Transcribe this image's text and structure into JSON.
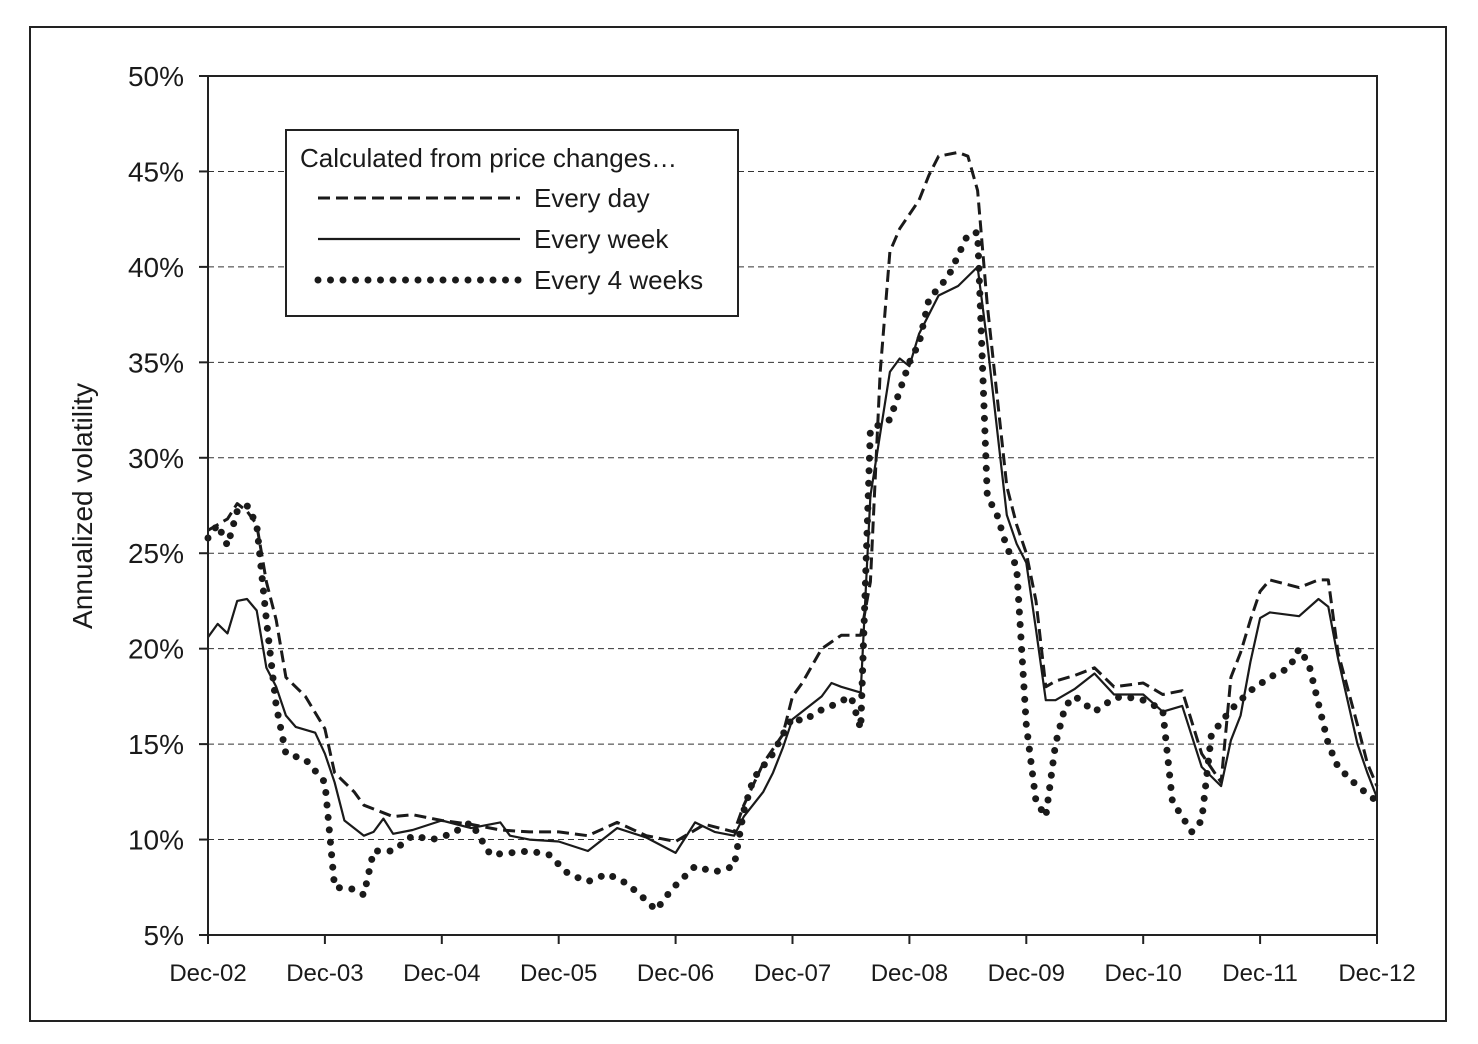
{
  "chart_data": {
    "type": "line",
    "title": "",
    "ylabel": "Annualized volatility",
    "xlabel": "",
    "ylim": [
      5,
      50
    ],
    "y_unit": "%",
    "y_ticks": [
      "5%",
      "10%",
      "15%",
      "20%",
      "25%",
      "30%",
      "35%",
      "40%",
      "45%",
      "50%"
    ],
    "x_ticks": [
      "Dec-02",
      "Dec-03",
      "Dec-04",
      "Dec-05",
      "Dec-06",
      "Dec-07",
      "Dec-08",
      "Dec-09",
      "Dec-10",
      "Dec-11",
      "Dec-12"
    ],
    "x_range": [
      "Dec-02",
      "Dec-12"
    ],
    "grid": "horizontal dashed",
    "legend": {
      "title": "Calculated from price changes…",
      "position": "top-left",
      "entries": [
        "Every day",
        "Every week",
        "Every 4 weeks"
      ]
    },
    "series": [
      {
        "name": "Every day",
        "style": "dashed",
        "points": [
          [
            "Dec-02",
            26.2
          ],
          [
            "Feb-03",
            26.8
          ],
          [
            "Mar-03",
            27.6
          ],
          [
            "Apr-03",
            27.2
          ],
          [
            "May-03",
            26.5
          ],
          [
            "Jun-03",
            23.5
          ],
          [
            "Jul-03",
            21.5
          ],
          [
            "Aug-03",
            18.5
          ],
          [
            "Oct-03",
            17.5
          ],
          [
            "Dec-03",
            15.8
          ],
          [
            "Jan-04",
            13.5
          ],
          [
            "Mar-04",
            12.5
          ],
          [
            "Apr-04",
            11.8
          ],
          [
            "Jun-04",
            11.4
          ],
          [
            "Jul-04",
            11.2
          ],
          [
            "Sep-04",
            11.3
          ],
          [
            "Dec-04",
            11.0
          ],
          [
            "Mar-05",
            10.8
          ],
          [
            "Jun-05",
            10.5
          ],
          [
            "Sep-05",
            10.4
          ],
          [
            "Dec-05",
            10.4
          ],
          [
            "Mar-06",
            10.2
          ],
          [
            "Jun-06",
            10.9
          ],
          [
            "Sep-06",
            10.2
          ],
          [
            "Dec-06",
            9.9
          ],
          [
            "Mar-07",
            10.8
          ],
          [
            "Jun-07",
            10.4
          ],
          [
            "Jul-07",
            11.8
          ],
          [
            "Sep-07",
            14.0
          ],
          [
            "Nov-07",
            15.5
          ],
          [
            "Dec-07",
            17.5
          ],
          [
            "Jan-08",
            18.2
          ],
          [
            "Mar-08",
            20.0
          ],
          [
            "May-08",
            20.7
          ],
          [
            "Jul-08",
            20.7
          ],
          [
            "Aug-08",
            23.5
          ],
          [
            "Sep-08",
            34.5
          ],
          [
            "Oct-08",
            40.8
          ],
          [
            "Nov-08",
            42.0
          ],
          [
            "Jan-09",
            43.5
          ],
          [
            "Feb-09",
            44.8
          ],
          [
            "Mar-09",
            45.8
          ],
          [
            "May-09",
            46.0
          ],
          [
            "Jun-09",
            45.8
          ],
          [
            "Jul-09",
            44.0
          ],
          [
            "Aug-09",
            38.0
          ],
          [
            "Oct-09",
            28.5
          ],
          [
            "Nov-09",
            26.5
          ],
          [
            "Dec-09",
            25.0
          ],
          [
            "Jan-10",
            22.5
          ],
          [
            "Feb-10",
            18.0
          ],
          [
            "Mar-10",
            18.3
          ],
          [
            "May-10",
            18.6
          ],
          [
            "Jul-10",
            19.0
          ],
          [
            "Sep-10",
            18.0
          ],
          [
            "Dec-10",
            18.2
          ],
          [
            "Feb-11",
            17.6
          ],
          [
            "Apr-11",
            17.8
          ],
          [
            "Jun-11",
            14.5
          ],
          [
            "Aug-11",
            13.0
          ],
          [
            "Sep-11",
            18.5
          ],
          [
            "Oct-11",
            19.8
          ],
          [
            "Nov-11",
            21.5
          ],
          [
            "Dec-11",
            23.0
          ],
          [
            "Jan-12",
            23.6
          ],
          [
            "Apr-12",
            23.2
          ],
          [
            "Jun-12",
            23.6
          ],
          [
            "Jul-12",
            23.6
          ],
          [
            "Aug-12",
            19.8
          ],
          [
            "Oct-12",
            16.0
          ],
          [
            "Nov-12",
            14.0
          ],
          [
            "Dec-12",
            12.8
          ]
        ]
      },
      {
        "name": "Every week",
        "style": "solid",
        "points": [
          [
            "Dec-02",
            20.6
          ],
          [
            "Jan-03",
            21.3
          ],
          [
            "Feb-03",
            20.8
          ],
          [
            "Mar-03",
            22.5
          ],
          [
            "Apr-03",
            22.6
          ],
          [
            "May-03",
            22.0
          ],
          [
            "Jun-03",
            19.0
          ],
          [
            "Jul-03",
            18.0
          ],
          [
            "Aug-03",
            16.5
          ],
          [
            "Sep-03",
            15.9
          ],
          [
            "Nov-03",
            15.6
          ],
          [
            "Dec-03",
            14.5
          ],
          [
            "Jan-04",
            13.0
          ],
          [
            "Feb-04",
            11.0
          ],
          [
            "Apr-04",
            10.2
          ],
          [
            "May-04",
            10.4
          ],
          [
            "Jun-04",
            11.1
          ],
          [
            "Jul-04",
            10.3
          ],
          [
            "Sep-04",
            10.5
          ],
          [
            "Dec-04",
            11.0
          ],
          [
            "Mar-05",
            10.6
          ],
          [
            "Jun-05",
            10.9
          ],
          [
            "Jul-05",
            10.2
          ],
          [
            "Sep-05",
            10.0
          ],
          [
            "Dec-05",
            9.9
          ],
          [
            "Mar-06",
            9.4
          ],
          [
            "Jun-06",
            10.6
          ],
          [
            "Sep-06",
            10.1
          ],
          [
            "Dec-06",
            9.3
          ],
          [
            "Feb-07",
            10.9
          ],
          [
            "Apr-07",
            10.4
          ],
          [
            "Jun-07",
            10.2
          ],
          [
            "Jul-07",
            11.2
          ],
          [
            "Sep-07",
            12.5
          ],
          [
            "Oct-07",
            13.5
          ],
          [
            "Nov-07",
            14.8
          ],
          [
            "Dec-07",
            16.3
          ],
          [
            "Mar-08",
            17.5
          ],
          [
            "Apr-08",
            18.2
          ],
          [
            "May-08",
            18.0
          ],
          [
            "Jul-08",
            17.7
          ],
          [
            "Aug-08",
            28.0
          ],
          [
            "Oct-08",
            34.5
          ],
          [
            "Nov-08",
            35.2
          ],
          [
            "Dec-08",
            34.8
          ],
          [
            "Jan-09",
            36.5
          ],
          [
            "Mar-09",
            38.5
          ],
          [
            "May-09",
            39.0
          ],
          [
            "Jul-09",
            40.0
          ],
          [
            "Aug-09",
            36.0
          ],
          [
            "Oct-09",
            27.0
          ],
          [
            "Nov-09",
            25.5
          ],
          [
            "Dec-09",
            24.5
          ],
          [
            "Jan-10",
            21.0
          ],
          [
            "Feb-10",
            17.3
          ],
          [
            "Mar-10",
            17.3
          ],
          [
            "May-10",
            17.9
          ],
          [
            "Jul-10",
            18.7
          ],
          [
            "Sep-10",
            17.6
          ],
          [
            "Dec-10",
            17.6
          ],
          [
            "Feb-11",
            16.7
          ],
          [
            "Apr-11",
            17.0
          ],
          [
            "Jun-11",
            13.8
          ],
          [
            "Aug-11",
            12.8
          ],
          [
            "Sep-11",
            15.2
          ],
          [
            "Oct-11",
            16.5
          ],
          [
            "Nov-11",
            19.3
          ],
          [
            "Dec-11",
            21.6
          ],
          [
            "Jan-12",
            21.9
          ],
          [
            "Apr-12",
            21.7
          ],
          [
            "Jun-12",
            22.6
          ],
          [
            "Jul-12",
            22.2
          ],
          [
            "Aug-12",
            19.5
          ],
          [
            "Oct-12",
            15.0
          ],
          [
            "Nov-12",
            13.5
          ],
          [
            "Dec-12",
            12.2
          ]
        ]
      },
      {
        "name": "Every 4 weeks",
        "style": "dotted",
        "points": [
          [
            "Dec-02",
            25.8
          ],
          [
            "Jan-03",
            26.5
          ],
          [
            "Feb-03",
            25.4
          ],
          [
            "Mar-03",
            27.2
          ],
          [
            "Apr-03",
            27.5
          ],
          [
            "May-03",
            26.5
          ],
          [
            "Jun-03",
            21.5
          ],
          [
            "Jul-03",
            17.0
          ],
          [
            "Aug-03",
            14.5
          ],
          [
            "Oct-03",
            14.2
          ],
          [
            "Dec-03",
            13.0
          ],
          [
            "Jan-04",
            7.5
          ],
          [
            "Mar-04",
            7.4
          ],
          [
            "Apr-04",
            7.1
          ],
          [
            "May-04",
            9.4
          ],
          [
            "Jul-04",
            9.4
          ],
          [
            "Sep-04",
            10.2
          ],
          [
            "Nov-04",
            10.0
          ],
          [
            "Jan-05",
            10.3
          ],
          [
            "Mar-05",
            10.9
          ],
          [
            "May-05",
            9.2
          ],
          [
            "Jul-05",
            9.3
          ],
          [
            "Sep-05",
            9.4
          ],
          [
            "Nov-05",
            9.2
          ],
          [
            "Jan-06",
            8.2
          ],
          [
            "Mar-06",
            7.8
          ],
          [
            "May-06",
            8.2
          ],
          [
            "Jul-06",
            7.7
          ],
          [
            "Sep-06",
            6.8
          ],
          [
            "Oct-06",
            6.3
          ],
          [
            "Nov-06",
            7.0
          ],
          [
            "Dec-06",
            7.6
          ],
          [
            "Feb-07",
            8.6
          ],
          [
            "Apr-07",
            8.3
          ],
          [
            "Jun-07",
            8.6
          ],
          [
            "Jul-07",
            11.5
          ],
          [
            "Aug-07",
            13.2
          ],
          [
            "Oct-07",
            14.5
          ],
          [
            "Nov-07",
            15.5
          ],
          [
            "Dec-07",
            16.4
          ],
          [
            "Jan-08",
            16.2
          ],
          [
            "Mar-08",
            16.8
          ],
          [
            "Apr-08",
            17.0
          ],
          [
            "Jun-08",
            17.5
          ],
          [
            "Jul-08",
            15.8
          ],
          [
            "Aug-08",
            31.5
          ],
          [
            "Oct-08",
            32.0
          ],
          [
            "Nov-08",
            33.5
          ],
          [
            "Dec-08",
            35.0
          ],
          [
            "Jan-09",
            36.0
          ],
          [
            "Feb-09",
            38.3
          ],
          [
            "Apr-09",
            39.5
          ],
          [
            "Jun-09",
            41.7
          ],
          [
            "Jul-09",
            41.8
          ],
          [
            "Aug-09",
            28.0
          ],
          [
            "Sep-09",
            27.0
          ],
          [
            "Oct-09",
            25.3
          ],
          [
            "Nov-09",
            24.3
          ],
          [
            "Dec-09",
            16.0
          ],
          [
            "Jan-10",
            12.0
          ],
          [
            "Feb-10",
            11.2
          ],
          [
            "Mar-10",
            15.0
          ],
          [
            "Apr-10",
            17.0
          ],
          [
            "May-10",
            17.5
          ],
          [
            "Jul-10",
            16.7
          ],
          [
            "Sep-10",
            17.4
          ],
          [
            "Oct-10",
            17.5
          ],
          [
            "Dec-10",
            17.3
          ],
          [
            "Feb-11",
            16.8
          ],
          [
            "Mar-11",
            12.0
          ],
          [
            "May-11",
            10.4
          ],
          [
            "Jun-11",
            11.0
          ],
          [
            "Jul-11",
            15.5
          ],
          [
            "Sep-11",
            16.8
          ],
          [
            "Nov-11",
            17.8
          ],
          [
            "Jan-12",
            18.5
          ],
          [
            "Mar-12",
            19.0
          ],
          [
            "Apr-12",
            20.0
          ],
          [
            "May-12",
            19.2
          ],
          [
            "Jul-12",
            15.0
          ],
          [
            "Aug-12",
            13.8
          ],
          [
            "Oct-12",
            12.8
          ],
          [
            "Dec-12",
            12.0
          ]
        ]
      }
    ]
  }
}
